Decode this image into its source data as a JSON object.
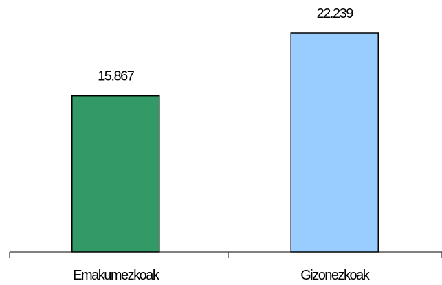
{
  "chart_data": {
    "type": "bar",
    "categories": [
      "Emakumezkoak",
      "Gizonezkoak"
    ],
    "values": [
      15867,
      22239
    ],
    "value_labels": [
      "15.867",
      "22.239"
    ],
    "colors": [
      "#339966",
      "#99ccff"
    ]
  }
}
